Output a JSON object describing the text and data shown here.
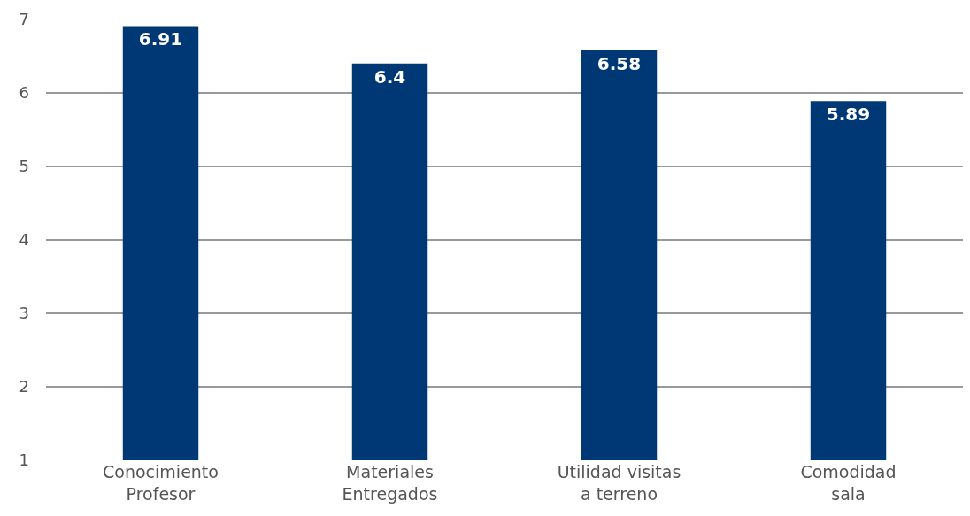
{
  "chart_data": {
    "type": "bar",
    "categories": [
      "Conocimiento Profesor",
      "Materiales Entregados",
      "Utilidad visitas a terreno",
      "Comodidad sala"
    ],
    "values": [
      6.91,
      6.4,
      6.58,
      5.89
    ],
    "color": "#003876",
    "data_labels": true,
    "ylim": [
      1,
      7
    ],
    "yticks": [
      1,
      2,
      3,
      4,
      5,
      6,
      7
    ],
    "grid": "y"
  }
}
